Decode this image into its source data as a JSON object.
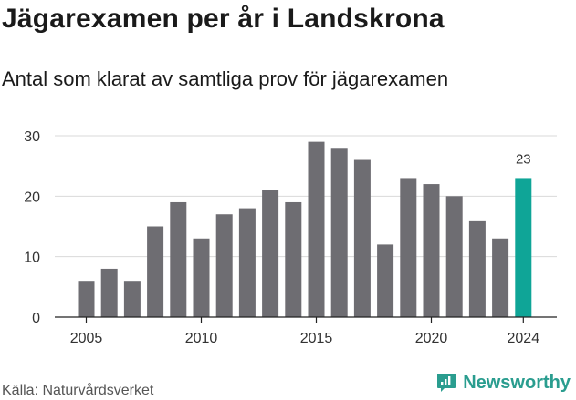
{
  "title": "Jägarexamen per år i Landskrona",
  "subtitle": "Antal som klarat av samtliga prov för jägarexamen",
  "source": "Källa: Naturvårdsverket",
  "logo_text": "Newsworthy",
  "colors": {
    "bar": "#6e6d72",
    "highlight": "#0fa597",
    "grid": "#d9d9d9",
    "axis": "#222222",
    "logo": "#2a9d8f"
  },
  "chart_data": {
    "type": "bar",
    "title": "Jägarexamen per år i Landskrona",
    "subtitle": "Antal som klarat av samtliga prov för jägarexamen",
    "x": [
      2005,
      2006,
      2007,
      2008,
      2009,
      2010,
      2011,
      2012,
      2013,
      2014,
      2015,
      2016,
      2017,
      2018,
      2019,
      2020,
      2021,
      2022,
      2023,
      2024
    ],
    "values": [
      6,
      8,
      6,
      15,
      19,
      13,
      17,
      18,
      21,
      19,
      29,
      28,
      26,
      12,
      23,
      22,
      20,
      16,
      13,
      23
    ],
    "highlight": {
      "x": 2024,
      "label": "23"
    },
    "xticks": [
      "2005",
      "2010",
      "2015",
      "2020",
      "2024"
    ],
    "yticks": [
      "0",
      "10",
      "20",
      "30"
    ],
    "ylim": [
      0,
      30
    ],
    "grid": true,
    "legend": "none"
  }
}
